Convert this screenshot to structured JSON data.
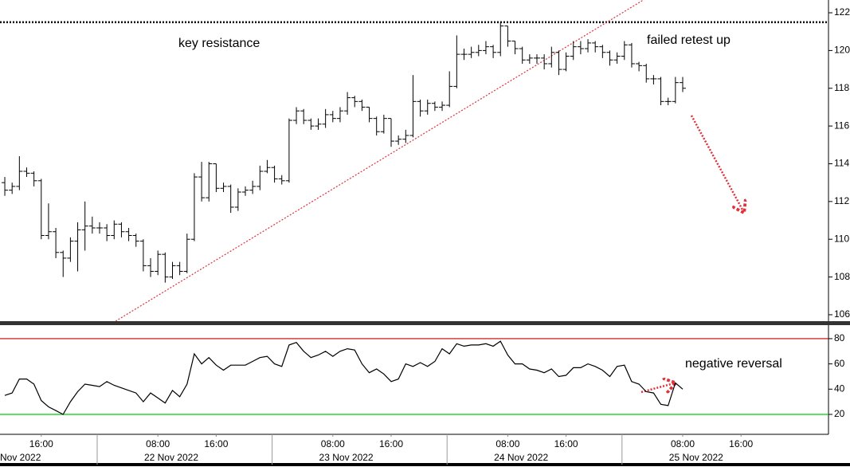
{
  "chart_data": [
    {
      "type": "ohlc",
      "xlim": [
        -0.66,
        113
      ],
      "xticks": [
        {
          "value": 5,
          "label": "16:00"
        },
        {
          "value": 21,
          "label": "08:00"
        },
        {
          "value": 29,
          "label": "16:00"
        },
        {
          "value": 45,
          "label": "08:00"
        },
        {
          "value": 53,
          "label": "16:00"
        },
        {
          "value": 69,
          "label": "08:00"
        },
        {
          "value": 77,
          "label": "16:00"
        },
        {
          "value": 93,
          "label": "08:00"
        },
        {
          "value": 101,
          "label": "16:00"
        }
      ],
      "day_starts": [
        13,
        37,
        61,
        85
      ],
      "date_labels": [
        "Nov 2022",
        "22 Nov 2022",
        "23 Nov 2022",
        "24 Nov 2022",
        "25 Nov 2022"
      ],
      "ylim": [
        105.66,
        122.55
      ],
      "yticks": [
        106,
        108,
        110,
        112,
        114,
        116,
        118,
        120,
        122
      ],
      "color": "#000000",
      "open": [
        113.0,
        112.6,
        112.8,
        113.6,
        113.5,
        113.1,
        110.2,
        110.4,
        109.3,
        109.0,
        109.9,
        110.5,
        110.7,
        110.6,
        110.6,
        110.2,
        110.8,
        110.4,
        110.2,
        109.9,
        108.6,
        108.3,
        109.2,
        108.0,
        108.6,
        108.3,
        110.0,
        113.3,
        112.2,
        114.0,
        112.7,
        112.8,
        111.7,
        112.5,
        112.6,
        112.8,
        113.6,
        113.8,
        113.2,
        113.1,
        116.3,
        116.8,
        116.3,
        116.0,
        116.1,
        116.6,
        116.4,
        116.8,
        117.5,
        117.3,
        117.0,
        116.4,
        115.7,
        116.4,
        115.2,
        115.3,
        115.5,
        117.3,
        116.8,
        117.2,
        117.0,
        117.1,
        118.1,
        119.8,
        119.8,
        119.9,
        120.0,
        120.2,
        119.9,
        121.3,
        120.5,
        120.1,
        119.5,
        119.6,
        119.6,
        119.3,
        119.9,
        119.0,
        119.7,
        120.2,
        120.1,
        120.4,
        120.2,
        119.9,
        119.5,
        119.7,
        120.3,
        119.3,
        119.2,
        118.5,
        118.5,
        117.3,
        117.3,
        118.3
      ],
      "high": [
        113.3,
        113.0,
        114.4,
        113.8,
        113.6,
        113.2,
        111.9,
        110.6,
        109.4,
        110.1,
        110.9,
        112.0,
        111.2,
        110.9,
        110.8,
        111.0,
        110.9,
        110.6,
        110.3,
        110.0,
        109.0,
        109.4,
        109.3,
        108.8,
        108.8,
        110.3,
        113.5,
        114.1,
        114.1,
        114.0,
        113.0,
        112.9,
        112.7,
        112.8,
        113.1,
        113.9,
        114.2,
        113.9,
        113.4,
        116.4,
        117.0,
        116.9,
        116.4,
        116.4,
        116.9,
        116.8,
        117.0,
        117.8,
        117.6,
        117.4,
        117.0,
        116.5,
        116.6,
        116.4,
        115.5,
        115.8,
        118.7,
        117.4,
        117.4,
        117.3,
        117.3,
        118.9,
        120.8,
        120.1,
        120.2,
        120.3,
        120.5,
        120.3,
        121.5,
        121.3,
        120.5,
        120.2,
        119.8,
        119.8,
        119.8,
        120.2,
        120.0,
        119.9,
        120.5,
        120.5,
        120.6,
        120.5,
        120.3,
        120.0,
        119.9,
        120.5,
        120.4,
        119.4,
        119.3,
        118.7,
        118.6,
        117.5,
        118.6,
        118.6
      ],
      "low": [
        112.3,
        112.4,
        112.6,
        113.3,
        112.8,
        110.0,
        110.0,
        109.0,
        108.0,
        108.8,
        108.3,
        109.4,
        110.3,
        110.3,
        109.9,
        110.0,
        110.1,
        109.9,
        109.6,
        108.3,
        108.0,
        108.1,
        107.7,
        107.9,
        108.1,
        108.2,
        109.9,
        112.0,
        112.0,
        112.5,
        112.5,
        111.4,
        111.5,
        112.3,
        112.4,
        112.6,
        113.5,
        113.0,
        112.9,
        113.0,
        116.1,
        116.1,
        115.8,
        115.8,
        115.9,
        116.2,
        116.2,
        116.6,
        117.0,
        116.8,
        116.2,
        115.5,
        115.6,
        114.9,
        115.0,
        115.1,
        115.4,
        116.5,
        116.6,
        116.8,
        116.8,
        117.0,
        118.0,
        119.5,
        119.6,
        119.7,
        119.8,
        119.6,
        119.7,
        120.2,
        119.8,
        119.3,
        119.3,
        119.3,
        119.0,
        119.1,
        118.7,
        118.9,
        119.5,
        119.8,
        119.9,
        119.9,
        119.6,
        119.2,
        119.3,
        119.5,
        119.1,
        118.9,
        118.3,
        118.2,
        117.1,
        117.1,
        117.2,
        117.8
      ],
      "close": [
        112.6,
        112.8,
        113.6,
        113.5,
        113.1,
        110.2,
        110.4,
        109.3,
        109.0,
        109.9,
        110.5,
        110.7,
        110.6,
        110.6,
        110.2,
        110.8,
        110.4,
        110.2,
        109.9,
        108.6,
        108.3,
        109.2,
        108.0,
        108.6,
        108.3,
        110.0,
        113.3,
        112.2,
        114.0,
        112.7,
        112.8,
        111.7,
        112.5,
        112.6,
        112.8,
        113.6,
        113.8,
        113.2,
        113.1,
        116.3,
        116.8,
        116.3,
        116.0,
        116.1,
        116.6,
        116.4,
        116.8,
        117.5,
        117.3,
        117.0,
        116.4,
        115.7,
        116.4,
        115.2,
        115.3,
        115.5,
        117.3,
        116.8,
        117.2,
        117.0,
        117.1,
        118.1,
        119.8,
        119.8,
        119.9,
        120.0,
        120.2,
        119.9,
        121.3,
        120.5,
        120.1,
        119.5,
        119.6,
        119.6,
        119.3,
        119.9,
        119.0,
        119.7,
        120.2,
        120.1,
        120.4,
        120.2,
        119.9,
        119.5,
        119.7,
        120.3,
        119.3,
        119.2,
        118.5,
        118.5,
        117.3,
        117.3,
        118.3,
        118.0
      ],
      "resistance": {
        "value": 121.5,
        "color": "#000000"
      },
      "trendline": {
        "x": [
          15.2,
          87.7
        ],
        "y": [
          105.66,
          122.7
        ],
        "color": "#e0303a"
      },
      "annotations": [
        {
          "text": "key resistance"
        },
        {
          "text": "failed retest up"
        }
      ]
    },
    {
      "type": "line",
      "ylim": [
        4.2,
        90.7
      ],
      "yticks": [
        20,
        40,
        60,
        80
      ],
      "series": [
        {
          "color": "#000000",
          "values": [
            35,
            37,
            48,
            48,
            44,
            31,
            26,
            23,
            20,
            30,
            38,
            44,
            43,
            42,
            46,
            43,
            41,
            39,
            37,
            30,
            37,
            33,
            29,
            39,
            34,
            44,
            68,
            60,
            65,
            59,
            55,
            59,
            59,
            59,
            62,
            65,
            66,
            60,
            58,
            75,
            77,
            70,
            65,
            67,
            70,
            66,
            70,
            72,
            71,
            60,
            53,
            56,
            52,
            46,
            48,
            60,
            58,
            61,
            58,
            62,
            72,
            68,
            76,
            74,
            75,
            75,
            76,
            74,
            78,
            67,
            60,
            60,
            56,
            55,
            53,
            56,
            50,
            51,
            57,
            57,
            60,
            58,
            55,
            50,
            58,
            59,
            46,
            44,
            38,
            37,
            28,
            27,
            45,
            40
          ]
        }
      ],
      "levels": [
        {
          "value": 80,
          "color": "#c00000"
        },
        {
          "value": 20,
          "color": "#00cc00"
        }
      ],
      "annotations": [
        {
          "text": "negative reversal"
        }
      ]
    }
  ]
}
